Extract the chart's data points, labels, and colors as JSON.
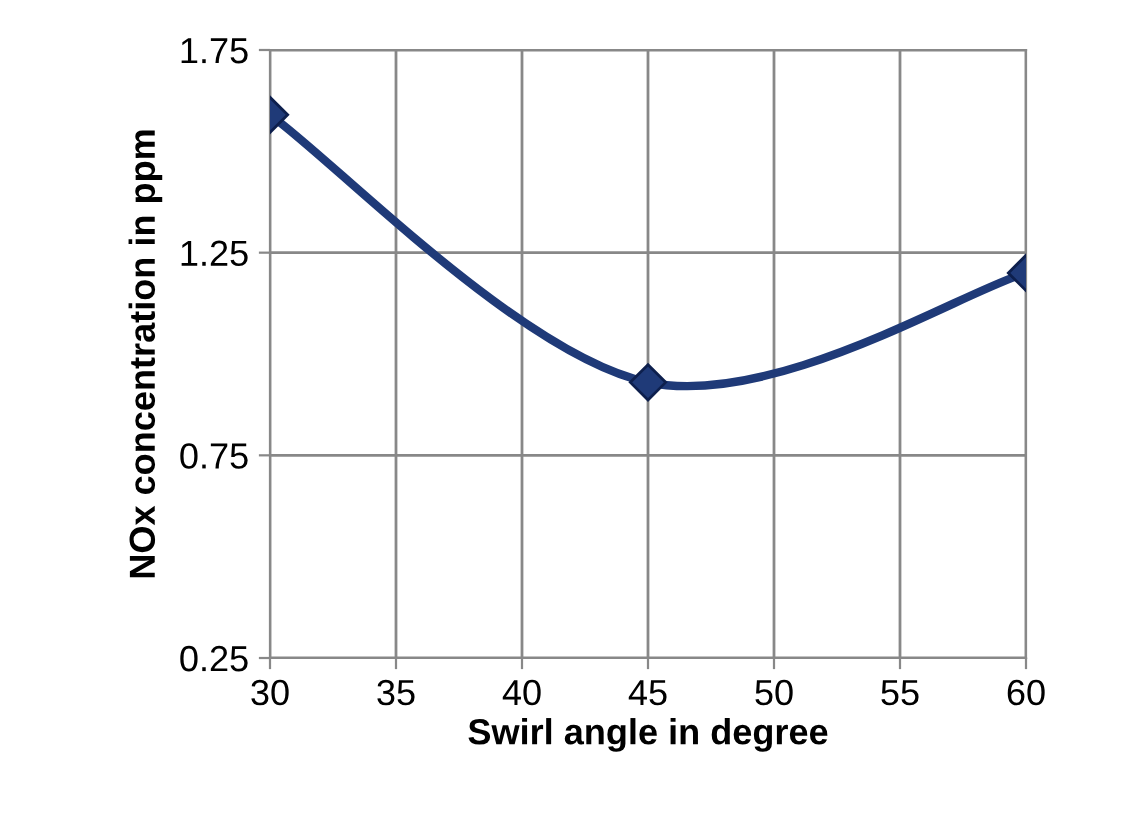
{
  "chart_data": {
    "type": "line",
    "xlabel": "Swirl angle in degree",
    "ylabel": "NOx concentration in ppm",
    "x": [
      30,
      45,
      60
    ],
    "series": [
      {
        "color": "#1f3a78",
        "values": [
          1.59,
          0.93,
          1.2
        ]
      }
    ],
    "xlim": [
      30,
      60
    ],
    "xticks": [
      30,
      35,
      40,
      45,
      50,
      55,
      60
    ],
    "ylim": [
      0.25,
      1.75
    ],
    "yticks": [
      {
        "value": 0.25,
        "label": "0.25"
      },
      {
        "value": 0.75,
        "label": "0.75"
      },
      {
        "value": 1.25,
        "label": "1.25"
      },
      {
        "value": 1.75,
        "label": "1.75"
      }
    ],
    "grid": true,
    "marker": "diamond",
    "line_style": "solid",
    "legend": false
  }
}
